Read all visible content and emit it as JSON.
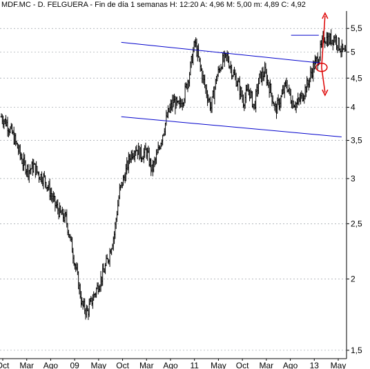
{
  "header": {
    "symbol": "MDF.MC",
    "name": "D. FELGUERA",
    "period": "Fin de día 1 semanas",
    "stats_text": "H: 12:20  A: 4,96  M: 5,00  m: 4,89  C: 4,92"
  },
  "chart_data": {
    "type": "line",
    "style": "ohlc-bars",
    "scale": "log",
    "y_ticks": [
      {
        "value": 1.5,
        "label": "1,5"
      },
      {
        "value": 2,
        "label": "2"
      },
      {
        "value": 2.5,
        "label": "2,5"
      },
      {
        "value": 3,
        "label": "3"
      },
      {
        "value": 3.5,
        "label": "3,5"
      },
      {
        "value": 4,
        "label": "4"
      },
      {
        "value": 4.5,
        "label": "4,5"
      },
      {
        "value": 5,
        "label": "5"
      },
      {
        "value": 5.5,
        "label": "5,5"
      }
    ],
    "ylim": [
      1.45,
      5.9
    ],
    "x_ticks": [
      "Oct",
      "Mar",
      "Ago",
      "09",
      "May",
      "Oct",
      "Mar",
      "Ago",
      "11",
      "May",
      "Oct",
      "Mar",
      "Ago",
      "13",
      "May"
    ],
    "grid": "horizontal-dashed",
    "series": [
      {
        "values": [
          3.85,
          3.75,
          3.6,
          3.4,
          3.2,
          3.1,
          3.15,
          3.05,
          3.0,
          2.85,
          2.7,
          2.6,
          2.55,
          2.3,
          2.05,
          1.8,
          1.75,
          1.85,
          1.95,
          2.05,
          2.2,
          2.4,
          2.85,
          3.05,
          3.3,
          3.4,
          3.3,
          3.35,
          3.1,
          3.3,
          3.6,
          3.9,
          4.1,
          4.0,
          4.2,
          4.6,
          5.2,
          4.7,
          4.3,
          4.0,
          4.5,
          4.8,
          4.9,
          4.6,
          4.4,
          4.1,
          4.3,
          4.0,
          4.5,
          4.6,
          4.3,
          3.95,
          4.15,
          4.4,
          4.1,
          4.05,
          4.2,
          4.4,
          4.7,
          4.9,
          5.3,
          5.25,
          5.3,
          5.1,
          4.92
        ]
      }
    ],
    "annotations": {
      "channel_upper": [
        {
          "x": 0.35,
          "y": 5.2
        },
        {
          "x": 0.93,
          "y": 4.78
        }
      ],
      "channel_lower": [
        {
          "x": 0.35,
          "y": 3.85
        },
        {
          "x": 0.93,
          "y": 3.55
        }
      ],
      "resistance_line": {
        "x1": 0.84,
        "x2": 0.92,
        "y": 5.35
      },
      "arrow_high": 5.85,
      "arrow_low": 4.2,
      "circle": {
        "x": 0.92,
        "y": 4.7
      }
    },
    "colors": {
      "price": "#000000",
      "channel": "#0000cc",
      "annotation": "#dd0000",
      "grid": "#9aa0a6"
    }
  }
}
